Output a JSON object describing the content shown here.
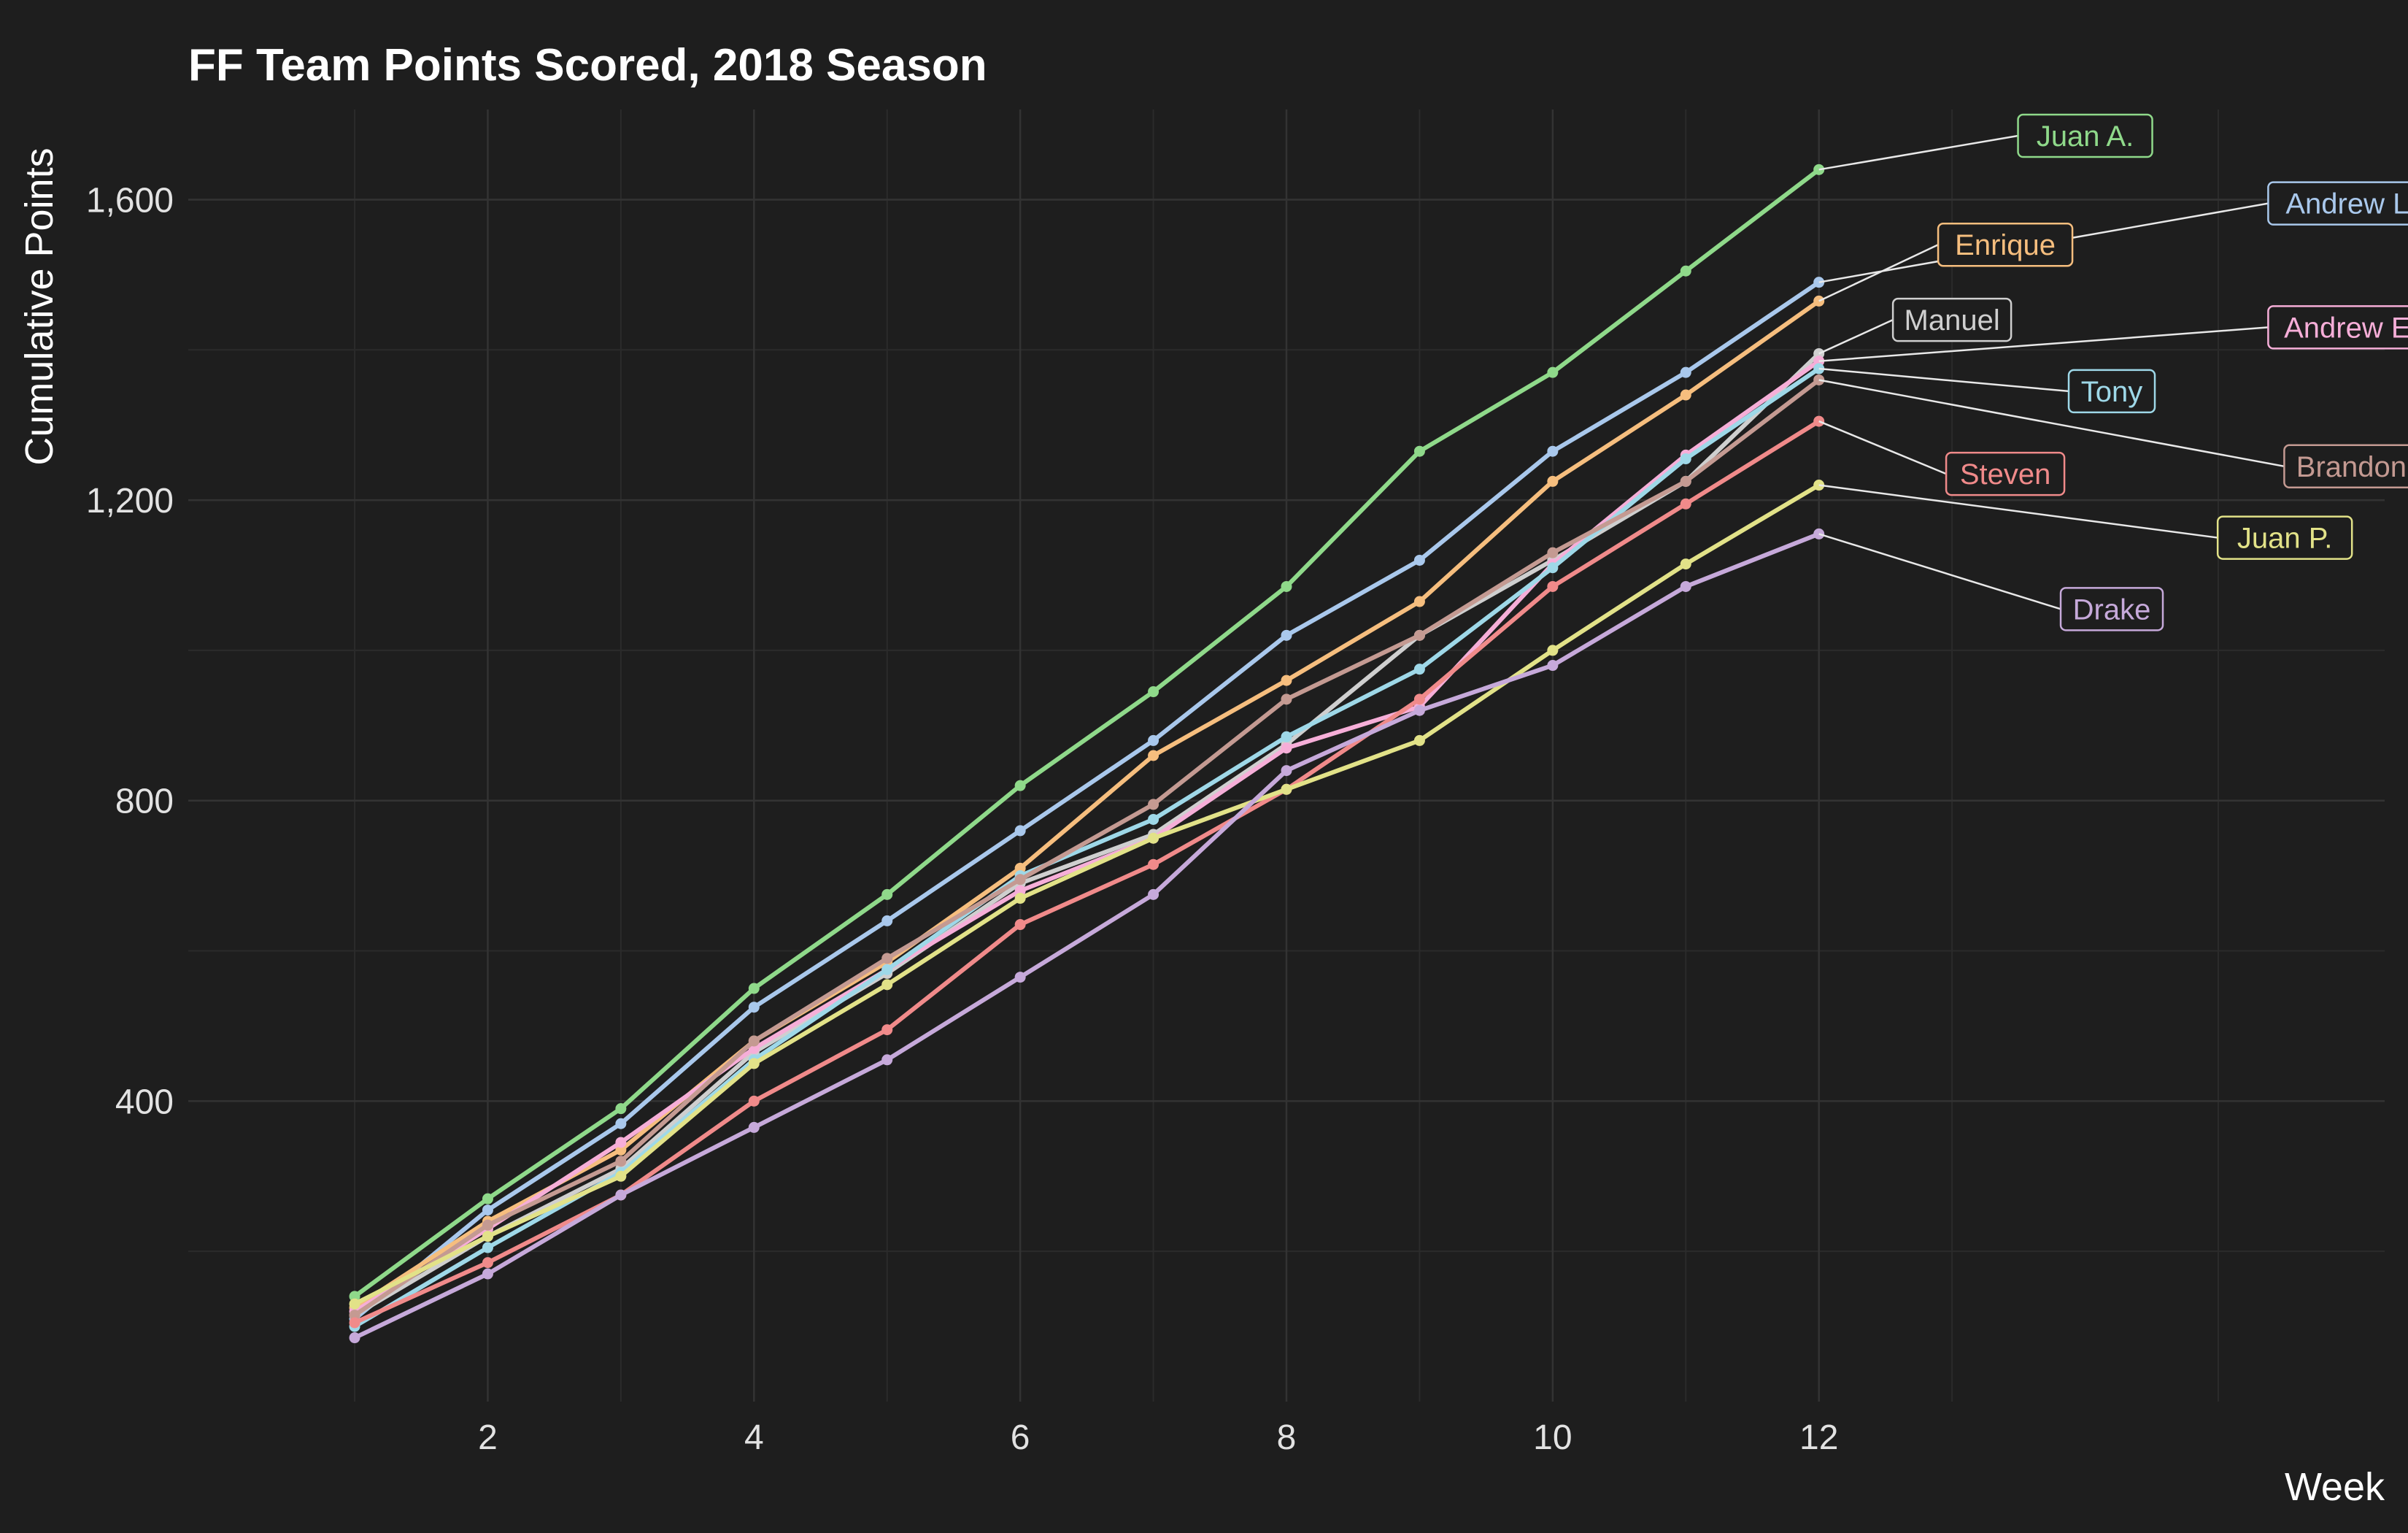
{
  "chart_data": {
    "type": "line",
    "title": "FF Team Points Scored, 2018 Season",
    "xlabel": "Week",
    "ylabel": "Cumulative Points",
    "x": [
      1,
      2,
      3,
      4,
      5,
      6,
      7,
      8,
      9,
      10,
      11,
      12
    ],
    "xticks": [
      2,
      4,
      6,
      8,
      10,
      12
    ],
    "yticks": [
      400,
      800,
      1200,
      1600
    ],
    "ytick_labels": [
      "400",
      "800",
      "1,200",
      "1,600"
    ],
    "xlim": [
      -0.25,
      16.25
    ],
    "ylim": [
      0,
      1720
    ],
    "grid": true,
    "legend": "direct labels at line ends",
    "series": [
      {
        "name": "Juan A.",
        "color": "#8fd98a",
        "values": [
          140,
          270,
          390,
          550,
          675,
          820,
          945,
          1085,
          1265,
          1370,
          1505,
          1640
        ]
      },
      {
        "name": "Andrew L.",
        "color": "#a9c8ec",
        "values": [
          110,
          255,
          370,
          525,
          640,
          760,
          880,
          1020,
          1120,
          1265,
          1370,
          1490
        ]
      },
      {
        "name": "Enrique",
        "color": "#f6be7e",
        "values": [
          125,
          240,
          335,
          480,
          585,
          710,
          860,
          960,
          1065,
          1225,
          1340,
          1465
        ]
      },
      {
        "name": "Manuel",
        "color": "#cfcfcf",
        "values": [
          115,
          220,
          310,
          465,
          570,
          690,
          755,
          875,
          1020,
          1120,
          1225,
          1395
        ]
      },
      {
        "name": "Andrew E.",
        "color": "#f6aed8",
        "values": [
          120,
          230,
          345,
          470,
          575,
          680,
          750,
          870,
          925,
          1115,
          1260,
          1385
        ]
      },
      {
        "name": "Tony",
        "color": "#9ed8e8",
        "values": [
          100,
          205,
          305,
          455,
          575,
          700,
          775,
          885,
          975,
          1110,
          1255,
          1375
        ]
      },
      {
        "name": "Brandon",
        "color": "#c49a92",
        "values": [
          115,
          235,
          320,
          480,
          590,
          695,
          795,
          935,
          1020,
          1130,
          1225,
          1360
        ]
      },
      {
        "name": "Steven",
        "color": "#f08a8a",
        "values": [
          105,
          185,
          275,
          400,
          495,
          635,
          715,
          815,
          935,
          1085,
          1195,
          1305
        ]
      },
      {
        "name": "Juan P.",
        "color": "#e2e288",
        "values": [
          130,
          220,
          300,
          450,
          555,
          670,
          750,
          815,
          880,
          1000,
          1115,
          1220
        ]
      },
      {
        "name": "Drake",
        "color": "#c6a9da",
        "values": [
          85,
          170,
          275,
          365,
          455,
          565,
          675,
          840,
          920,
          980,
          1085,
          1155
        ]
      }
    ],
    "label_positions": {
      "Juan A.": [
        14.0,
        1685
      ],
      "Andrew L.": [
        16.0,
        1595
      ],
      "Enrique": [
        13.4,
        1540
      ],
      "Manuel": [
        13.0,
        1440
      ],
      "Andrew E.": [
        16.0,
        1430
      ],
      "Tony": [
        14.2,
        1345
      ],
      "Brandon": [
        16.0,
        1245
      ],
      "Steven": [
        13.4,
        1235
      ],
      "Juan P.": [
        15.5,
        1150
      ],
      "Drake": [
        14.2,
        1055
      ]
    }
  }
}
